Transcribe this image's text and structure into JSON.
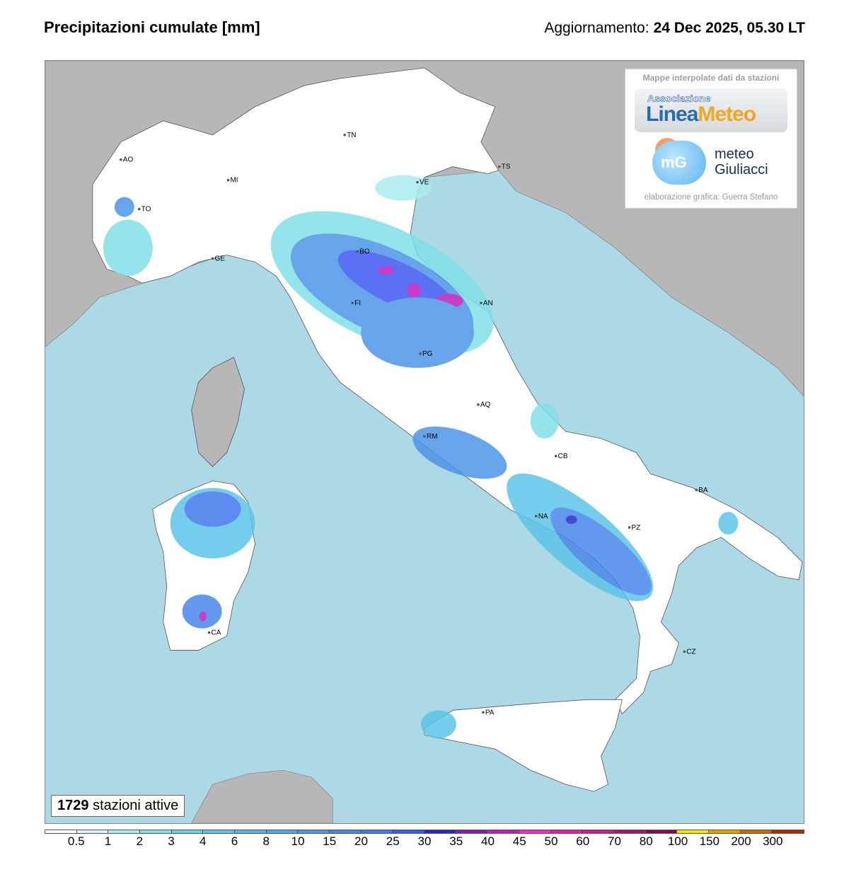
{
  "header": {
    "title": "Precipitazioni cumulate [mm]",
    "update_label": "Aggiornamento:",
    "update_value": "24 Dec 2025, 05.30 LT"
  },
  "logo_box": {
    "heading": "Mappe interpolate dati da stazioni",
    "linea_meteo_top": "Associazione",
    "linea_meteo_a": "Linea",
    "linea_meteo_b": "Meteo",
    "mg_mark": "mG",
    "mg_line1": "meteo",
    "mg_line2": "Giuliacci",
    "credit": "elaborazione grafica: Guerra Stefano"
  },
  "stations": {
    "count": "1729",
    "label": "stazioni attive"
  },
  "colors": {
    "sea": "#add8e6",
    "foreign_land": "#b7b7b7",
    "italy_land": "#ffffff"
  },
  "cities": [
    {
      "code": "AO"
    },
    {
      "code": "TN"
    },
    {
      "code": "TS"
    },
    {
      "code": "MI"
    },
    {
      "code": "VE"
    },
    {
      "code": "TO"
    },
    {
      "code": "GE"
    },
    {
      "code": "BO"
    },
    {
      "code": "AN"
    },
    {
      "code": "FI"
    },
    {
      "code": "PG"
    },
    {
      "code": "AQ"
    },
    {
      "code": "RM"
    },
    {
      "code": "CB"
    },
    {
      "code": "BA"
    },
    {
      "code": "NA"
    },
    {
      "code": "PZ"
    },
    {
      "code": "CZ"
    },
    {
      "code": "PA"
    },
    {
      "code": "CA"
    }
  ],
  "legend": {
    "unit": "mm",
    "thresholds": [
      "0.5",
      "1",
      "2",
      "3",
      "4",
      "6",
      "8",
      "10",
      "15",
      "20",
      "25",
      "30",
      "35",
      "40",
      "45",
      "50",
      "60",
      "70",
      "80",
      "100",
      "150",
      "200",
      "300"
    ],
    "colors": [
      "#ffffff",
      "#d8f4f8",
      "#a8ecec",
      "#80e0e8",
      "#68d4e8",
      "#5cc4e8",
      "#56b4e8",
      "#50a4e8",
      "#4c94e8",
      "#4886ea",
      "#4276ec",
      "#3c58f0",
      "#2828c8",
      "#8c1cb4",
      "#c01cc0",
      "#ff28c8",
      "#e81ca8",
      "#d01890",
      "#a81470",
      "#800c48",
      "#f8e800",
      "#e0a000",
      "#c86c00",
      "#b02800"
    ]
  }
}
